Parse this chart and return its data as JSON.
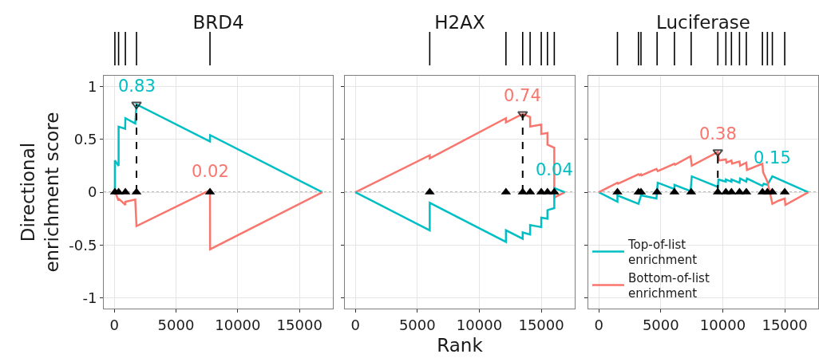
{
  "chart_data": [
    {
      "type": "line",
      "title": "BRD4",
      "ylabel": "Directional enrichment score",
      "xlim": [
        -850,
        17700
      ],
      "ylim": [
        -1.1,
        1.1
      ],
      "xticks": [
        0,
        5000,
        10000,
        15000
      ],
      "yticks": [
        -1,
        -0.5,
        0,
        0.5,
        1
      ],
      "grid": true,
      "legend": false,
      "ref_lines": [
        {
          "axis": "y",
          "value": 0,
          "line_style": "dotted",
          "color": "#555555"
        }
      ],
      "annotations": [
        {
          "text": "0.83",
          "x": 1800,
          "y": 0.83
        },
        {
          "text": "0.02",
          "x": 7750,
          "y": 0.02
        }
      ],
      "series": [
        {
          "color": "#00bfc4",
          "x": [
            0,
            50,
            50,
            350,
            350,
            880,
            900,
            1700,
            1800,
            7750,
            7760,
            16850
          ],
          "values": [
            0,
            -0.01,
            0.3,
            0.25,
            0.62,
            0.6,
            0.7,
            0.65,
            0.83,
            0.48,
            0.54,
            0
          ]
        },
        {
          "color": "#f8766d",
          "x": [
            0,
            50,
            350,
            350,
            900,
            900,
            1700,
            1800,
            7750,
            7760,
            16850
          ],
          "values": [
            0,
            0.01,
            -0.08,
            -0.06,
            -0.12,
            -0.09,
            -0.07,
            -0.32,
            0.02,
            -0.54,
            0
          ]
        },
        {
          "type": "scatter",
          "marker": "triangle",
          "color": "#000000",
          "x": [
            50,
            350,
            900,
            1800,
            7750
          ],
          "values": [
            0,
            0,
            0,
            0,
            0
          ]
        },
        {
          "line_style": "dashed",
          "marker": "triangle",
          "color": "#000000",
          "x": [
            1800,
            1800
          ],
          "values": [
            0,
            0.83
          ]
        }
      ]
    },
    {
      "type": "line",
      "title": "H2AX",
      "xlabel": "Rank",
      "xlim": [
        -850,
        17700
      ],
      "ylim": [
        -1.1,
        1.1
      ],
      "xticks": [
        0,
        5000,
        10000,
        15000
      ],
      "yticks": [
        -1,
        -0.5,
        0,
        0.5,
        1
      ],
      "grid": true,
      "legend": false,
      "tick_labels": "x",
      "ref_lines": [
        {
          "axis": "y",
          "value": 0,
          "line_style": "dotted",
          "color": "#555555"
        }
      ],
      "annotations": [
        {
          "text": "0.74",
          "x": 13500,
          "y": 0.74
        },
        {
          "text": "0.04",
          "x": 16050,
          "y": 0.04
        }
      ],
      "series": [
        {
          "color": "#f8766d",
          "x": [
            0,
            6000,
            6000,
            12150,
            12150,
            13500,
            14100,
            14100,
            15000,
            15000,
            15500,
            15500,
            16050,
            16050,
            16900
          ],
          "values": [
            0,
            0.35,
            0.32,
            0.7,
            0.66,
            0.74,
            0.71,
            0.62,
            0.64,
            0.55,
            0.56,
            0.45,
            0.42,
            -0.05,
            0
          ]
        },
        {
          "color": "#00bfc4",
          "x": [
            0,
            6000,
            6000,
            12150,
            12150,
            13500,
            13500,
            14100,
            14100,
            15000,
            15000,
            15500,
            15500,
            16050,
            16050,
            16900
          ],
          "values": [
            0,
            -0.36,
            -0.1,
            -0.47,
            -0.36,
            -0.44,
            -0.38,
            -0.4,
            -0.31,
            -0.33,
            -0.24,
            -0.25,
            -0.17,
            -0.15,
            0.04,
            0
          ]
        },
        {
          "type": "scatter",
          "marker": "triangle",
          "color": "#000000",
          "x": [
            6000,
            12150,
            13500,
            14100,
            15000,
            15500,
            16050
          ],
          "values": [
            0,
            0,
            0,
            0,
            0,
            0,
            0
          ]
        },
        {
          "line_style": "dashed",
          "marker": "triangle",
          "color": "#000000",
          "x": [
            13500,
            13500
          ],
          "values": [
            0,
            0.74
          ]
        }
      ]
    },
    {
      "type": "line",
      "title": "Luciferase",
      "xlim": [
        -850,
        17700
      ],
      "ylim": [
        -1.1,
        1.1
      ],
      "xticks": [
        0,
        5000,
        10000,
        15000
      ],
      "yticks": [
        -1,
        -0.5,
        0,
        0.5,
        1
      ],
      "grid": true,
      "legend": "bottom",
      "tick_labels": "x",
      "ref_lines": [
        {
          "axis": "y",
          "value": 0,
          "line_style": "dotted",
          "color": "#555555"
        }
      ],
      "annotations": [
        {
          "text": "0.38",
          "x": 9600,
          "y": 0.38
        },
        {
          "text": "0.15",
          "x": 14000,
          "y": 0.15
        }
      ],
      "series": [
        {
          "name": "Top-of-list enrichment",
          "color": "#00bfc4",
          "x": [
            0,
            1500,
            1500,
            3200,
            3400,
            4650,
            4750,
            6100,
            6100,
            7400,
            7500,
            9600,
            9650,
            10250,
            10250,
            10700,
            10700,
            11350,
            11400,
            11900,
            11950,
            13200,
            13300,
            13600,
            14000,
            16900
          ],
          "values": [
            0,
            -0.09,
            -0.03,
            -0.11,
            -0.03,
            -0.06,
            0.09,
            0.03,
            0.07,
            0.01,
            0.15,
            0.05,
            0.12,
            0.1,
            0.12,
            0.1,
            0.12,
            0.09,
            0.13,
            0.1,
            0.13,
            0.06,
            0.08,
            0.07,
            0.15,
            0
          ]
        },
        {
          "name": "Bottom-of-list enrichment",
          "color": "#f8766d",
          "x": [
            0,
            1500,
            1550,
            3200,
            3300,
            3400,
            3450,
            4650,
            4750,
            6100,
            6150,
            7400,
            7500,
            9600,
            9700,
            10250,
            10300,
            10700,
            10750,
            11350,
            11400,
            11900,
            11950,
            13200,
            13250,
            13600,
            13800,
            14000,
            14500,
            15000,
            15050,
            16900
          ],
          "values": [
            0,
            0.09,
            0.08,
            0.17,
            0.16,
            0.17,
            0.16,
            0.22,
            0.2,
            0.27,
            0.26,
            0.34,
            0.25,
            0.38,
            0.3,
            0.31,
            0.28,
            0.3,
            0.27,
            0.29,
            0.25,
            0.28,
            0.21,
            0.27,
            0.19,
            0.1,
            0,
            -0.11,
            -0.08,
            -0.06,
            -0.12,
            0
          ]
        },
        {
          "type": "scatter",
          "marker": "triangle",
          "color": "#000000",
          "x": [
            1500,
            3200,
            3400,
            4700,
            6100,
            7450,
            9600,
            10250,
            10700,
            11350,
            11900,
            13200,
            13600,
            14000,
            15000
          ],
          "values": [
            0,
            0,
            0,
            0,
            0,
            0,
            0,
            0,
            0,
            0,
            0,
            0,
            0,
            0,
            0
          ]
        },
        {
          "line_style": "dashed",
          "marker": "triangle",
          "color": "#000000",
          "x": [
            9600,
            9600
          ],
          "values": [
            0,
            0.38
          ]
        }
      ]
    }
  ]
}
